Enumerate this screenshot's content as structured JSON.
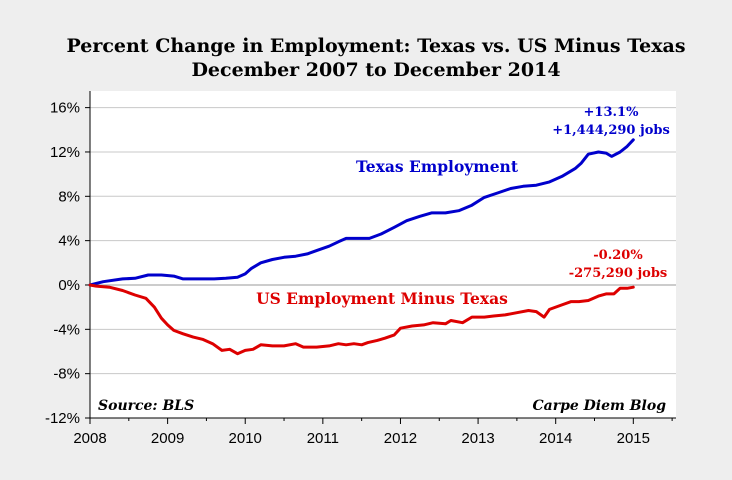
{
  "chart_data": {
    "type": "line",
    "title": "Percent Change in Employment: Texas vs. US Minus Texas",
    "subtitle": "December 2007 to December 2014",
    "xlabel": "",
    "ylabel": "",
    "xlim": [
      2008,
      2015.55
    ],
    "ylim": [
      -12,
      17.5
    ],
    "x_ticks": [
      2008,
      2009,
      2010,
      2011,
      2012,
      2013,
      2014,
      2015
    ],
    "x_tick_labels": [
      "2008",
      "2009",
      "2010",
      "2011",
      "2012",
      "2013",
      "2014",
      "2015"
    ],
    "y_ticks": [
      -12,
      -8,
      -4,
      0,
      4,
      8,
      12,
      16
    ],
    "y_tick_labels": [
      "-12%",
      "-8%",
      "-4%",
      "0%",
      "4%",
      "8%",
      "12%",
      "16%"
    ],
    "grid": "horizontal",
    "series": [
      {
        "name": "Texas Employment",
        "color": "#0000cc",
        "points": [
          [
            2008.0,
            0.0
          ],
          [
            2008.17,
            0.3
          ],
          [
            2008.42,
            0.55
          ],
          [
            2008.58,
            0.6
          ],
          [
            2008.75,
            0.9
          ],
          [
            2008.92,
            0.9
          ],
          [
            2009.08,
            0.8
          ],
          [
            2009.2,
            0.55
          ],
          [
            2009.4,
            0.55
          ],
          [
            2009.6,
            0.55
          ],
          [
            2009.75,
            0.6
          ],
          [
            2009.9,
            0.7
          ],
          [
            2010.0,
            1.0
          ],
          [
            2010.08,
            1.5
          ],
          [
            2010.2,
            2.0
          ],
          [
            2010.35,
            2.3
          ],
          [
            2010.5,
            2.5
          ],
          [
            2010.65,
            2.6
          ],
          [
            2010.8,
            2.8
          ],
          [
            2010.92,
            3.1
          ],
          [
            2011.08,
            3.5
          ],
          [
            2011.2,
            3.9
          ],
          [
            2011.3,
            4.2
          ],
          [
            2011.45,
            4.2
          ],
          [
            2011.6,
            4.2
          ],
          [
            2011.75,
            4.6
          ],
          [
            2011.92,
            5.2
          ],
          [
            2012.08,
            5.8
          ],
          [
            2012.25,
            6.2
          ],
          [
            2012.4,
            6.5
          ],
          [
            2012.58,
            6.5
          ],
          [
            2012.75,
            6.7
          ],
          [
            2012.92,
            7.2
          ],
          [
            2013.08,
            7.9
          ],
          [
            2013.25,
            8.3
          ],
          [
            2013.42,
            8.7
          ],
          [
            2013.58,
            8.9
          ],
          [
            2013.75,
            9.0
          ],
          [
            2013.92,
            9.3
          ],
          [
            2014.08,
            9.8
          ],
          [
            2014.25,
            10.5
          ],
          [
            2014.33,
            11.0
          ],
          [
            2014.42,
            11.8
          ],
          [
            2014.55,
            12.0
          ],
          [
            2014.65,
            11.9
          ],
          [
            2014.72,
            11.6
          ],
          [
            2014.83,
            12.0
          ],
          [
            2014.92,
            12.5
          ],
          [
            2015.0,
            13.1
          ]
        ]
      },
      {
        "name": "US Employment Minus Texas",
        "color": "#dd0000",
        "points": [
          [
            2008.0,
            0.0
          ],
          [
            2008.08,
            -0.1
          ],
          [
            2008.25,
            -0.2
          ],
          [
            2008.42,
            -0.5
          ],
          [
            2008.58,
            -0.9
          ],
          [
            2008.72,
            -1.2
          ],
          [
            2008.83,
            -2.0
          ],
          [
            2008.92,
            -3.0
          ],
          [
            2009.0,
            -3.6
          ],
          [
            2009.08,
            -4.1
          ],
          [
            2009.2,
            -4.4
          ],
          [
            2009.33,
            -4.7
          ],
          [
            2009.45,
            -4.9
          ],
          [
            2009.58,
            -5.3
          ],
          [
            2009.7,
            -5.9
          ],
          [
            2009.8,
            -5.8
          ],
          [
            2009.9,
            -6.2
          ],
          [
            2010.0,
            -5.9
          ],
          [
            2010.1,
            -5.8
          ],
          [
            2010.2,
            -5.4
          ],
          [
            2010.35,
            -5.5
          ],
          [
            2010.5,
            -5.5
          ],
          [
            2010.65,
            -5.3
          ],
          [
            2010.75,
            -5.6
          ],
          [
            2010.92,
            -5.6
          ],
          [
            2011.08,
            -5.5
          ],
          [
            2011.2,
            -5.3
          ],
          [
            2011.3,
            -5.4
          ],
          [
            2011.4,
            -5.3
          ],
          [
            2011.5,
            -5.4
          ],
          [
            2011.58,
            -5.2
          ],
          [
            2011.7,
            -5.0
          ],
          [
            2011.8,
            -4.8
          ],
          [
            2011.92,
            -4.5
          ],
          [
            2012.0,
            -3.9
          ],
          [
            2012.15,
            -3.7
          ],
          [
            2012.3,
            -3.6
          ],
          [
            2012.42,
            -3.4
          ],
          [
            2012.58,
            -3.5
          ],
          [
            2012.65,
            -3.2
          ],
          [
            2012.8,
            -3.4
          ],
          [
            2012.92,
            -2.9
          ],
          [
            2013.08,
            -2.9
          ],
          [
            2013.2,
            -2.8
          ],
          [
            2013.35,
            -2.7
          ],
          [
            2013.5,
            -2.5
          ],
          [
            2013.65,
            -2.3
          ],
          [
            2013.75,
            -2.4
          ],
          [
            2013.85,
            -2.9
          ],
          [
            2013.92,
            -2.2
          ],
          [
            2014.08,
            -1.8
          ],
          [
            2014.2,
            -1.5
          ],
          [
            2014.3,
            -1.5
          ],
          [
            2014.42,
            -1.4
          ],
          [
            2014.55,
            -1.0
          ],
          [
            2014.65,
            -0.8
          ],
          [
            2014.75,
            -0.8
          ],
          [
            2014.83,
            -0.3
          ],
          [
            2014.92,
            -0.3
          ],
          [
            2015.0,
            -0.2
          ]
        ]
      }
    ],
    "annotations": {
      "texas_series_label": "Texas Employment",
      "us_series_label": "US Employment Minus Texas",
      "texas_pct": "+13.1%",
      "texas_jobs": "+1,444,290 jobs",
      "us_pct": "-0.20%",
      "us_jobs": "-275,290 jobs",
      "source": "Source: BLS",
      "credit": "Carpe Diem Blog"
    }
  }
}
